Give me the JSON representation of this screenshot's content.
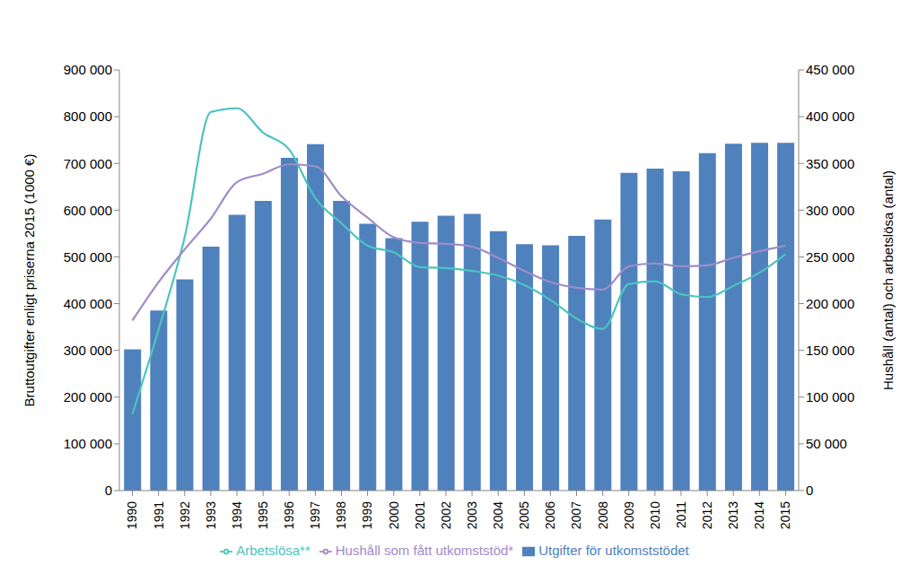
{
  "chart_data": {
    "type": "bar",
    "categories": [
      "1990",
      "1991",
      "1992",
      "1993",
      "1994",
      "1995",
      "1996",
      "1997",
      "1998",
      "1999",
      "2000",
      "2001",
      "2002",
      "2003",
      "2004",
      "2005",
      "2006",
      "2007",
      "2008",
      "2009",
      "2010",
      "2011",
      "2012",
      "2013",
      "2014",
      "2015"
    ],
    "series": [
      {
        "name": "Utgifter för utkomststödet",
        "type": "bar",
        "axis": "y",
        "color": "#4f81bd",
        "values": [
          302000,
          385000,
          452000,
          522000,
          590000,
          620000,
          712000,
          741000,
          620000,
          571000,
          540000,
          575000,
          588000,
          592000,
          555000,
          527000,
          525000,
          545000,
          580000,
          680000,
          689000,
          683000,
          722000,
          742000,
          744000,
          744000
        ]
      },
      {
        "name": "Arbetslösa**",
        "type": "line",
        "axis": "y2",
        "color": "#4bc4c0",
        "values": [
          82000,
          172000,
          271000,
          405000,
          409000,
          383000,
          365000,
          313000,
          286000,
          262000,
          255000,
          239000,
          238000,
          235000,
          230000,
          220000,
          204000,
          184000,
          173000,
          221000,
          224000,
          210000,
          207000,
          219000,
          233000,
          253000
        ]
      },
      {
        "name": "Hushåll som fått utkomststöd*",
        "type": "line",
        "axis": "y2",
        "color": "#a08bc8",
        "values": [
          182000,
          223000,
          258000,
          291000,
          330000,
          339000,
          349000,
          347000,
          315000,
          292000,
          271000,
          265000,
          264000,
          261000,
          249000,
          235000,
          223000,
          217000,
          215000,
          240000,
          243000,
          240000,
          241000,
          249000,
          256000,
          262000
        ]
      }
    ],
    "ylabel": "Bruttoutgifter enligt priserna 2015 (1000 €)",
    "y2label": "Hushåll (antal) och arbetslösa (antal)",
    "ylim": [
      0,
      900000
    ],
    "yticks": [
      0,
      {
        "value": 100000,
        "label": "100 000"
      },
      {
        "value": 200000,
        "label": "200 000"
      },
      {
        "value": 300000,
        "label": "300 000"
      },
      {
        "value": 400000,
        "label": "400 000"
      },
      {
        "value": 500000,
        "label": "500 000"
      },
      {
        "value": 600000,
        "label": "600 000"
      },
      {
        "value": 700000,
        "label": "700 000"
      },
      {
        "value": 800000,
        "label": "800 000"
      },
      {
        "value": 900000,
        "label": "900 000"
      }
    ],
    "y2lim": [
      0,
      450000
    ],
    "y2ticks": [
      0,
      {
        "value": 50000,
        "label": "50 000"
      },
      {
        "value": 100000,
        "label": "100 000"
      },
      {
        "value": 150000,
        "label": "150 000"
      },
      {
        "value": 200000,
        "label": "200 000"
      },
      {
        "value": 250000,
        "label": "250 000"
      },
      {
        "value": 300000,
        "label": "300 000"
      },
      {
        "value": 350000,
        "label": "350 000"
      },
      {
        "value": 400000,
        "label": "400 000"
      },
      {
        "value": 450000,
        "label": "450 000"
      }
    ],
    "legend": "bottom",
    "grid": false
  }
}
